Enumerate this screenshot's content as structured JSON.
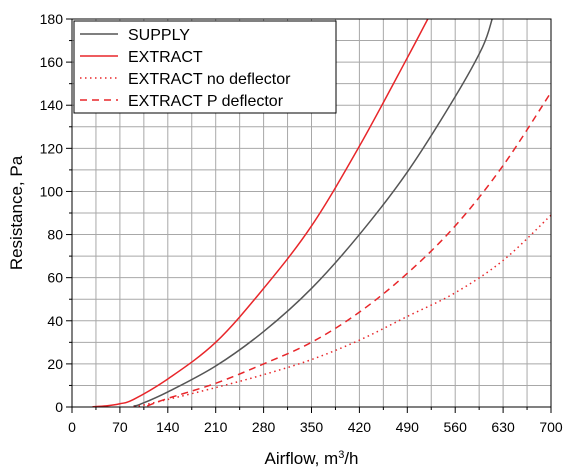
{
  "chart_data": {
    "type": "line",
    "xlabel": "Airflow, m",
    "xlabel_sup": "3",
    "xlabel_suffix": "/h",
    "ylabel": "Resistance, Pa",
    "xlim": [
      0,
      700
    ],
    "ylim": [
      0,
      180
    ],
    "xticks": [
      0,
      70,
      140,
      210,
      280,
      350,
      420,
      490,
      560,
      630,
      700
    ],
    "yticks": [
      0,
      20,
      40,
      60,
      80,
      100,
      120,
      140,
      160,
      180
    ],
    "grid": true,
    "legend_position": "top-left",
    "series": [
      {
        "name": "SUPPLY",
        "color": "#555555",
        "style": "solid",
        "x": [
          90,
          100,
          140,
          210,
          280,
          350,
          420,
          490,
          560,
          600,
          614
        ],
        "y": [
          0.5,
          1.3,
          7,
          19,
          35,
          55,
          80,
          109,
          144,
          167,
          180
        ]
      },
      {
        "name": "EXTRACT",
        "color": "#e8262a",
        "style": "solid",
        "x": [
          30,
          50,
          70,
          90,
          140,
          210,
          280,
          350,
          420,
          490,
          520,
          526
        ],
        "y": [
          0.1,
          0.5,
          1.5,
          3.5,
          13,
          30,
          55,
          84,
          121,
          162,
          180,
          183
        ]
      },
      {
        "name": "EXTRACT no deflector",
        "color": "#e8262a",
        "style": "dotted",
        "x": [
          90,
          100,
          140,
          210,
          280,
          350,
          420,
          490,
          560,
          630,
          700
        ],
        "y": [
          0.1,
          0.6,
          3.5,
          9,
          15,
          22,
          31,
          42,
          53,
          68,
          89
        ]
      },
      {
        "name": "EXTRACT P deflector",
        "color": "#e8262a",
        "style": "dashed",
        "x": [
          110,
          140,
          210,
          280,
          350,
          420,
          490,
          560,
          630,
          700
        ],
        "y": [
          0.5,
          4,
          11,
          20,
          30,
          44,
          62,
          84,
          112,
          146
        ]
      }
    ]
  }
}
